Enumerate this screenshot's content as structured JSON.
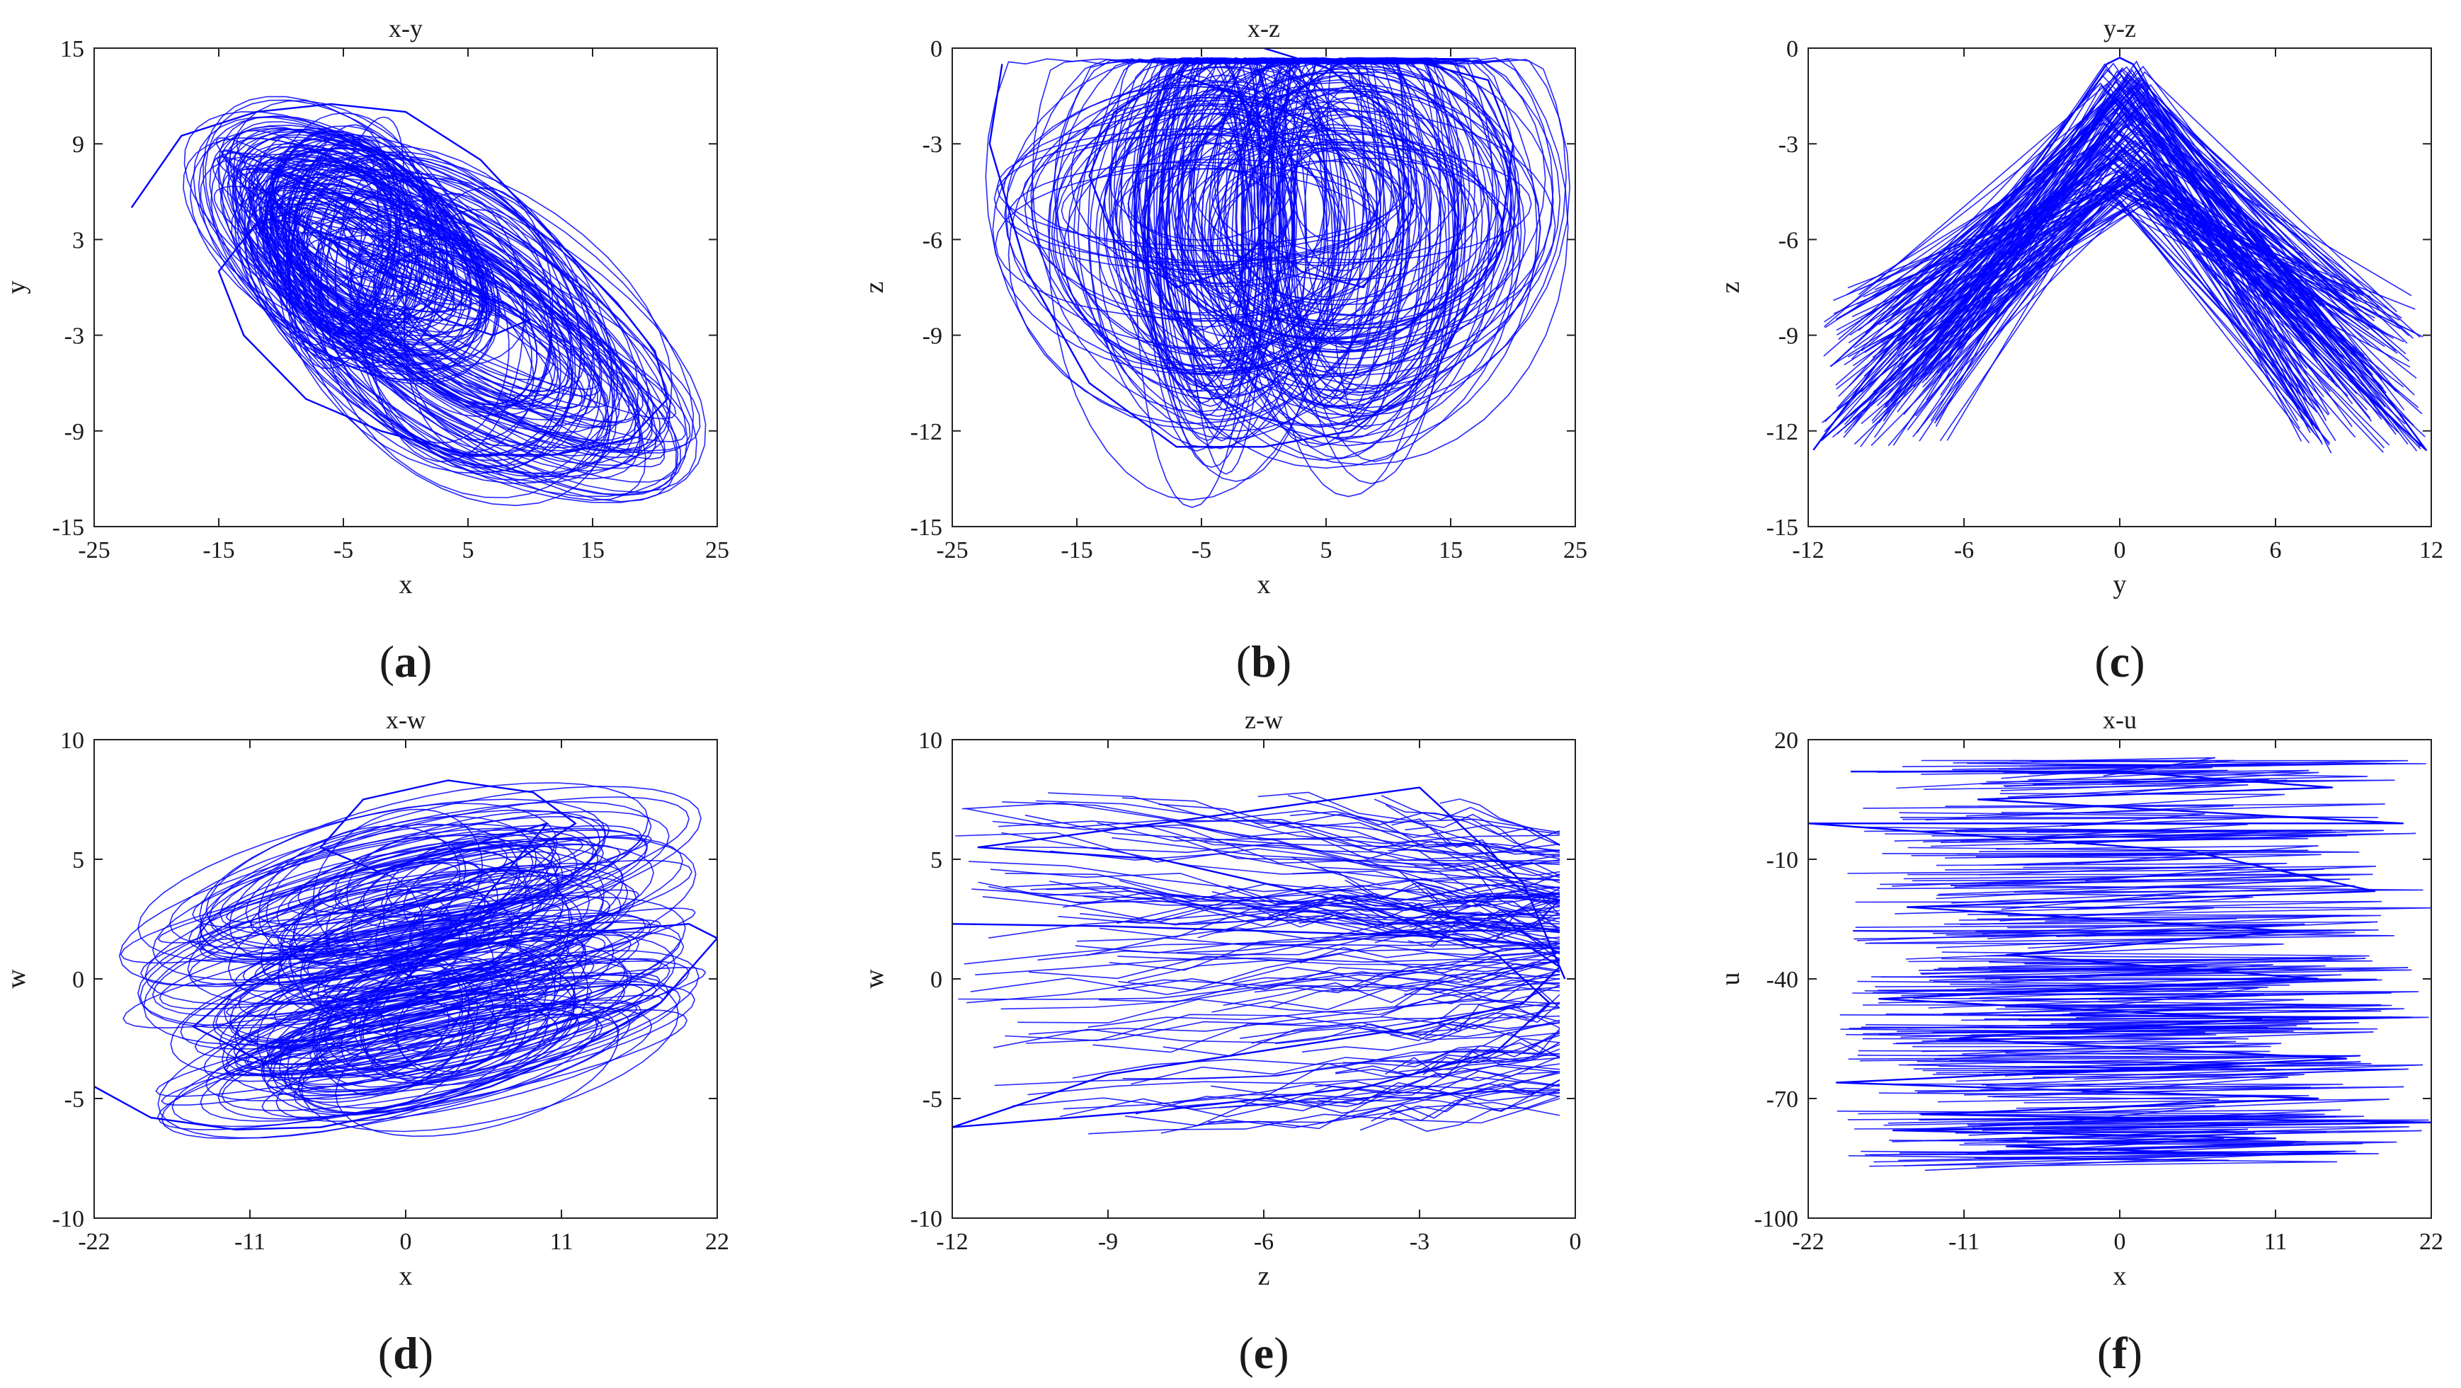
{
  "chart_data": [
    {
      "type": "line",
      "letter": "a",
      "title": "x-y",
      "xlabel": "x",
      "ylabel": "y",
      "xlim": [
        -25,
        25
      ],
      "ylim": [
        -15,
        15
      ],
      "xticks": [
        "-25",
        "-15",
        "-5",
        "5",
        "15",
        "25"
      ],
      "yticks": [
        "-15",
        "-9",
        "-3",
        "3",
        "9",
        "15"
      ],
      "series": [
        {
          "color": "#0000ff",
          "attractor_shape": "double-scroll",
          "x": [
            -22,
            -18,
            -12,
            -6,
            0,
            6,
            12,
            17,
            20,
            21,
            18,
            12,
            5,
            -2,
            -8,
            -13,
            -15,
            -12,
            -8,
            -5,
            -3,
            0,
            3,
            7,
            10,
            8,
            3,
            -2,
            -5,
            -6,
            -4
          ],
          "y": [
            5,
            9.5,
            11,
            11.5,
            11,
            8,
            3,
            -1,
            -4,
            -7,
            -9.5,
            -10.5,
            -10.5,
            -9,
            -7,
            -3,
            1,
            4,
            5,
            4,
            2,
            0,
            -2,
            -3,
            -2,
            -1,
            0,
            1,
            2,
            3,
            2
          ]
        }
      ]
    },
    {
      "type": "line",
      "letter": "b",
      "title": "x-z",
      "xlabel": "x",
      "ylabel": "z",
      "xlim": [
        -25,
        25
      ],
      "ylim": [
        -15,
        0
      ],
      "xticks": [
        "-25",
        "-15",
        "-5",
        "5",
        "15",
        "25"
      ],
      "yticks": [
        "-15",
        "-12",
        "-9",
        "-6",
        "-3",
        "0"
      ],
      "series": [
        {
          "color": "#0000ff",
          "attractor_shape": "butterfly",
          "x": [
            -21,
            -22,
            -19,
            -14,
            -7,
            0,
            7,
            14,
            19,
            20,
            18,
            12,
            6,
            2,
            0,
            -2,
            -7,
            -12,
            -14,
            -12,
            -7,
            -3,
            0,
            3,
            8,
            12,
            10,
            5,
            0
          ],
          "y": [
            -0.5,
            -3,
            -7,
            -10.5,
            -12.5,
            -12.5,
            -12,
            -10,
            -6,
            -3,
            -1,
            -0.4,
            -0.5,
            -1.5,
            -3,
            -1.5,
            -0.8,
            -2,
            -4,
            -6,
            -7.5,
            -7,
            -6,
            -7,
            -7.5,
            -5,
            -2,
            -0.6,
            0
          ]
        }
      ]
    },
    {
      "type": "line",
      "letter": "c",
      "title": "y-z",
      "xlabel": "y",
      "ylabel": "z",
      "xlim": [
        -12,
        12
      ],
      "ylim": [
        -15,
        0
      ],
      "xticks": [
        "-12",
        "-6",
        "0",
        "6",
        "12"
      ],
      "yticks": [
        "-15",
        "-12",
        "-9",
        "-6",
        "-3",
        "0"
      ],
      "series": [
        {
          "color": "#0000ff",
          "attractor_shape": "inverted-v",
          "x": [
            -11.8,
            -9,
            -6,
            -3,
            -0.5,
            0,
            0.5,
            3,
            6,
            9,
            11.8,
            9,
            6,
            3,
            0,
            -3,
            -6,
            -9,
            -11.5
          ],
          "y": [
            -12.6,
            -9.5,
            -6.5,
            -3.5,
            -0.5,
            -0.3,
            -0.5,
            -3.5,
            -6.5,
            -9.5,
            -12.6,
            -10.5,
            -7.5,
            -5,
            -4,
            -5.5,
            -8,
            -10.5,
            -12.3
          ]
        }
      ]
    },
    {
      "type": "line",
      "letter": "d",
      "title": "x-w",
      "xlabel": "x",
      "ylabel": "w",
      "xlim": [
        -22,
        22
      ],
      "ylim": [
        -10,
        10
      ],
      "xticks": [
        "-22",
        "-11",
        "0",
        "11",
        "22"
      ],
      "yticks": [
        "-10",
        "-5",
        "0",
        "5",
        "10"
      ],
      "series": [
        {
          "color": "#0000ff",
          "attractor_shape": "stacked-loops",
          "x": [
            -22,
            -18,
            -12,
            -6,
            0,
            6,
            12,
            18,
            22,
            20,
            14,
            8,
            2,
            -4,
            -10,
            -15,
            -11,
            -5,
            2,
            8,
            12,
            9,
            3,
            -3,
            -6,
            -2,
            4,
            10,
            5,
            0
          ],
          "y": [
            -4.5,
            -5.8,
            -6.3,
            -6.2,
            -5.5,
            -4.5,
            -3,
            -1,
            1.7,
            2.3,
            2,
            1,
            -0.5,
            -2,
            -3.5,
            -2,
            0,
            2,
            3.5,
            5,
            6.5,
            7.8,
            8.3,
            7.5,
            5.5,
            4.5,
            5.5,
            6.5,
            3,
            0
          ]
        }
      ]
    },
    {
      "type": "line",
      "letter": "e",
      "title": "z-w",
      "xlabel": "z",
      "ylabel": "w",
      "xlim": [
        -12,
        0
      ],
      "ylim": [
        -10,
        10
      ],
      "xticks": [
        "-12",
        "-9",
        "-6",
        "-3",
        "0"
      ],
      "yticks": [
        "-10",
        "-5",
        "0",
        "5",
        "10"
      ],
      "series": [
        {
          "color": "#0000ff",
          "attractor_shape": "horizontal-spikes",
          "x": [
            -12,
            -9,
            -6,
            -3,
            -1,
            -0.3,
            -1,
            -3,
            -6,
            -9,
            -12,
            -8,
            -4,
            -1.5,
            -0.5,
            -1.5,
            -4,
            -8,
            -11.5,
            -7,
            -3,
            -1,
            -0.2
          ],
          "y": [
            2.3,
            2.2,
            2,
            1.8,
            1.5,
            0.5,
            -1,
            -2,
            -3,
            -4,
            -6.2,
            -5.5,
            -4.5,
            -3,
            -1,
            1,
            3,
            5,
            5.5,
            6.8,
            8,
            4,
            0
          ]
        }
      ]
    },
    {
      "type": "line",
      "letter": "f",
      "title": "x-u",
      "xlabel": "x",
      "ylabel": "u",
      "xlim": [
        -22,
        22
      ],
      "ylim": [
        -100,
        20
      ],
      "xticks": [
        "-22",
        "-11",
        "0",
        "11",
        "22"
      ],
      "yticks": [
        "-100",
        "-70",
        "-40",
        "-10",
        "20"
      ],
      "series": [
        {
          "color": "#0000ff",
          "attractor_shape": "horizontal-bands",
          "x": [
            -19,
            0,
            15,
            -10,
            20,
            -22,
            5,
            18,
            -15,
            12,
            -8,
            14,
            -17,
            10,
            -12,
            16,
            -20,
            14,
            -14,
            22,
            -16,
            11,
            -8,
            9
          ],
          "y": [
            12,
            12,
            8,
            5,
            -1,
            -1,
            -8,
            -18,
            -22,
            -28,
            -34,
            -40,
            -45,
            -50,
            -55,
            -60,
            -66,
            -70,
            -74,
            -76,
            -78,
            -80,
            -82,
            -84
          ]
        }
      ]
    }
  ]
}
